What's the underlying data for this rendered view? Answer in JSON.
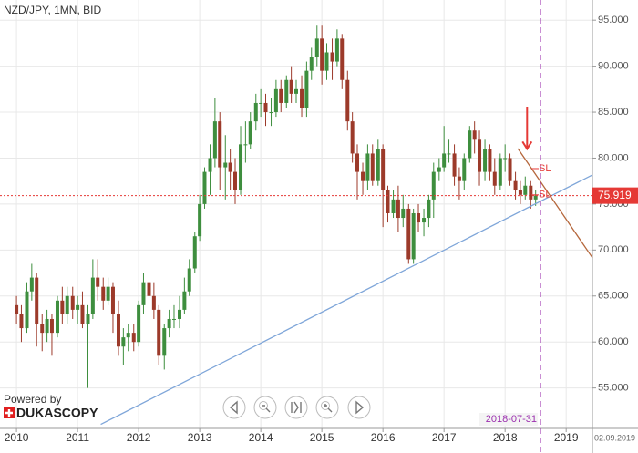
{
  "chart_data": {
    "type": "candlestick",
    "title": "NZD/JPY, 1MN, BID",
    "x": [
      2010,
      2010.08,
      2010.17,
      2010.25,
      2010.33,
      2010.42,
      2010.5,
      2010.58,
      2010.67,
      2010.75,
      2010.83,
      2010.92,
      2011,
      2011.08,
      2011.17,
      2011.25,
      2011.33,
      2011.42,
      2011.5,
      2011.58,
      2011.67,
      2011.75,
      2011.83,
      2011.92,
      2012,
      2012.08,
      2012.17,
      2012.25,
      2012.33,
      2012.42,
      2012.5,
      2012.58,
      2012.67,
      2012.75,
      2012.83,
      2012.92,
      2013,
      2013.08,
      2013.17,
      2013.25,
      2013.33,
      2013.42,
      2013.5,
      2013.58,
      2013.67,
      2013.75,
      2013.83,
      2013.92,
      2014,
      2014.08,
      2014.17,
      2014.25,
      2014.33,
      2014.42,
      2014.5,
      2014.58,
      2014.67,
      2014.75,
      2014.83,
      2014.92,
      2015,
      2015.08,
      2015.17,
      2015.25,
      2015.33,
      2015.42,
      2015.5,
      2015.58,
      2015.67,
      2015.75,
      2015.83,
      2015.92,
      2016,
      2016.08,
      2016.17,
      2016.25,
      2016.33,
      2016.42,
      2016.5,
      2016.58,
      2016.67,
      2016.75,
      2016.83,
      2016.92,
      2017,
      2017.08,
      2017.17,
      2017.25,
      2017.33,
      2017.42,
      2017.5,
      2017.58,
      2017.67,
      2017.75,
      2017.83,
      2017.92,
      2018,
      2018.08,
      2018.17,
      2018.25,
      2018.33,
      2018.42,
      2018.5
    ],
    "open": [
      64,
      63,
      61.5,
      65.5,
      67,
      62,
      61,
      62.5,
      61,
      64.5,
      63,
      65,
      63.5,
      64,
      62,
      63,
      67,
      66,
      64.5,
      66,
      63,
      59.5,
      60.5,
      61,
      60,
      64,
      66.5,
      65,
      63.5,
      58.5,
      61.5,
      62.5,
      62.5,
      63.5,
      65.5,
      68,
      71.5,
      75,
      78.5,
      80,
      84,
      79,
      79.5,
      78.5,
      76.5,
      81.5,
      81.5,
      84,
      86,
      86,
      85,
      85,
      87.5,
      86,
      88.5,
      87,
      87.5,
      85.5,
      89.5,
      91,
      93,
      89.5,
      91.5,
      90.5,
      93,
      88.5,
      84,
      80.5,
      78.5,
      77.5,
      80.5,
      77.5,
      81,
      76.5,
      74,
      75.5,
      73.5,
      74.5,
      69,
      74,
      73,
      73.5,
      75.5,
      78.5,
      79,
      80.5,
      80.5,
      78,
      77.5,
      80,
      83,
      82,
      78.5,
      81,
      78.5,
      77,
      80,
      80,
      77.5,
      76.5,
      76,
      77,
      75.5
    ],
    "high": [
      65,
      64,
      66.5,
      68.5,
      67.5,
      63,
      63.5,
      63,
      65,
      66,
      66,
      66,
      65,
      65.5,
      64,
      69,
      69,
      67,
      67,
      66.5,
      64.5,
      61.5,
      62,
      62,
      64.5,
      67.5,
      68,
      66.5,
      64,
      62,
      63.5,
      64,
      65,
      67,
      69,
      72,
      76,
      79,
      81.5,
      86.5,
      85,
      82.5,
      81,
      80,
      83.5,
      84,
      85,
      87,
      87.5,
      87,
      86.5,
      88.5,
      88.5,
      89,
      90,
      88.5,
      89,
      90.5,
      92,
      94.5,
      94.5,
      92.5,
      93,
      94,
      93.5,
      89.5,
      85,
      81.5,
      79.5,
      81.5,
      81.5,
      82,
      81.5,
      77,
      76.5,
      77,
      76,
      75,
      74.5,
      75,
      74.5,
      76,
      79.5,
      80,
      83.5,
      82,
      81.5,
      79,
      80.5,
      83.5,
      84,
      83,
      82,
      81.5,
      80,
      80.5,
      81.5,
      80.5,
      78.5,
      77.5,
      78,
      77.5,
      76.5
    ],
    "low": [
      62,
      60,
      61,
      64.5,
      59.5,
      59,
      60,
      58.5,
      60.5,
      62,
      62,
      62.5,
      62,
      61.5,
      55,
      62.5,
      64.5,
      63.5,
      64,
      61,
      58.5,
      57.5,
      59,
      59,
      59.5,
      63,
      64.5,
      62.5,
      57.5,
      57,
      60.5,
      61.5,
      61.5,
      63,
      65,
      67.5,
      71,
      74.5,
      76,
      79,
      76.5,
      75.5,
      76.5,
      75,
      76,
      79.5,
      81,
      83,
      84.5,
      83.5,
      83.5,
      84.5,
      85,
      85.5,
      86,
      86,
      84.5,
      84.5,
      88.5,
      90,
      88,
      88.5,
      88.5,
      90,
      87.5,
      83,
      79.5,
      75.5,
      76,
      76.5,
      77,
      77,
      72.5,
      73,
      73.5,
      72,
      72.5,
      68.5,
      68.5,
      72,
      71.5,
      72.5,
      73.5,
      77.5,
      78.5,
      79.5,
      77,
      75.5,
      76.5,
      79.5,
      80.5,
      77,
      77.5,
      77.5,
      76,
      76.5,
      78.5,
      77,
      75.5,
      75,
      75.5,
      74.5,
      74.8
    ],
    "close": [
      63,
      61.5,
      65.5,
      67,
      62,
      61,
      62.5,
      61,
      64.5,
      63,
      65,
      63.5,
      64,
      62,
      63,
      67,
      66,
      64.5,
      66,
      63,
      59.5,
      60.5,
      61,
      60,
      64,
      66.5,
      65,
      63.5,
      58.5,
      61.5,
      62.5,
      62.5,
      63.5,
      65.5,
      68,
      71.5,
      75,
      78.5,
      80,
      84,
      79,
      79.5,
      78.5,
      76.5,
      81.5,
      81.5,
      84,
      86,
      86,
      85,
      85,
      87.5,
      86,
      88.5,
      87,
      87.5,
      85.5,
      89.5,
      91,
      93,
      89.5,
      91.5,
      90.5,
      93,
      88.5,
      84,
      80.5,
      78.5,
      77.5,
      80.5,
      77.5,
      81,
      76.5,
      74,
      75.5,
      73.5,
      74.5,
      69,
      74,
      73,
      73.5,
      75.5,
      78.5,
      79,
      80.5,
      80.5,
      78,
      77.5,
      80,
      83,
      82,
      78.5,
      81,
      78.5,
      77,
      80,
      80,
      77.5,
      76.5,
      76,
      77,
      75.5,
      75.919
    ],
    "colors": {
      "up": "#3e8e3e",
      "down": "#9c3a2a"
    },
    "xlim": [
      2009.73,
      2019.43
    ],
    "xticks": [
      2010,
      2011,
      2012,
      2013,
      2014,
      2015,
      2016,
      2017,
      2018,
      2019
    ],
    "ylim": [
      50.6,
      97.2
    ],
    "yticks": [
      {
        "value": 55,
        "label": "55.000"
      },
      {
        "value": 60,
        "label": "60.000"
      },
      {
        "value": 65,
        "label": "65.000"
      },
      {
        "value": 70,
        "label": "70.000"
      },
      {
        "value": 75,
        "label": "75.000"
      },
      {
        "value": 80,
        "label": "80.000"
      },
      {
        "value": 85,
        "label": "85.000"
      },
      {
        "value": 90,
        "label": "90.000"
      },
      {
        "value": 95,
        "label": "95.000"
      }
    ],
    "grid": true,
    "current_price": {
      "value": 75.919,
      "color": "#e53935"
    },
    "vline": {
      "x": 2018.58,
      "label": "2018-07-31",
      "color": "#9b2fae"
    },
    "trendlines": [
      {
        "color": "#7fa6d9",
        "points": [
          [
            2011.38,
            51.04
          ],
          [
            2019.43,
            78.17
          ]
        ]
      },
      {
        "color": "#b5673c",
        "points": [
          [
            2018.21,
            81.04
          ],
          [
            2019.43,
            69.16
          ]
        ]
      }
    ],
    "arrow": {
      "x": 2018.36,
      "y": [
        85.6,
        81.0
      ],
      "color": "#e53935"
    },
    "annotations": [
      {
        "text": "SL",
        "x": 2018.55,
        "y": 78.86
      },
      {
        "text": "SL",
        "x": 2018.55,
        "y": 76.0
      }
    ]
  },
  "branding": {
    "powered_by": "Powered by",
    "logo": "DUKASCOPY"
  },
  "corner_date": "02.09.2019"
}
